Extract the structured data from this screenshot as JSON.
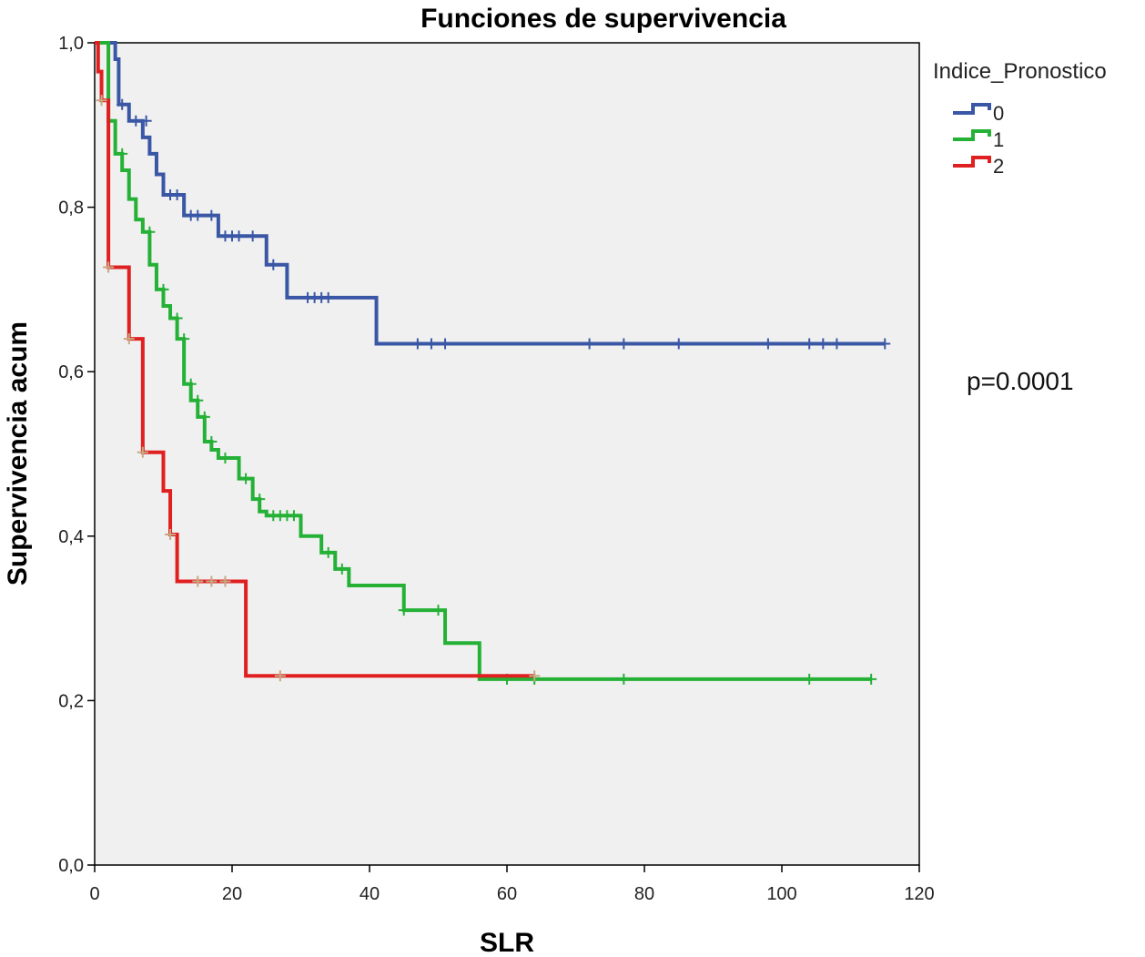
{
  "chart_data": {
    "type": "line",
    "title": "Funciones de supervivencia",
    "xlabel": "SLR",
    "ylabel": "Supervivencia acum",
    "xlim": [
      0,
      120
    ],
    "ylim": [
      0,
      1
    ],
    "x_ticks": [
      {
        "value": 0,
        "label": "0"
      },
      {
        "value": 20,
        "label": "20"
      },
      {
        "value": 40,
        "label": "40"
      },
      {
        "value": 60,
        "label": "60"
      },
      {
        "value": 80,
        "label": "80"
      },
      {
        "value": 100,
        "label": "100"
      },
      {
        "value": 120,
        "label": "120"
      }
    ],
    "y_ticks": [
      {
        "value": 0,
        "label": "0,0"
      },
      {
        "value": 0.2,
        "label": "0,2"
      },
      {
        "value": 0.4,
        "label": "0,4"
      },
      {
        "value": 0.6,
        "label": "0,6"
      },
      {
        "value": 0.8,
        "label": "0,8"
      },
      {
        "value": 1.0,
        "label": "1,0"
      }
    ],
    "grid": false,
    "plot_background": "#f0f0f0",
    "legend": {
      "title": "Indice_Pronostico",
      "position": "top-right outside plot"
    },
    "annotation": "p=0.0001",
    "step_interpolation": "post",
    "series": [
      {
        "name": "0",
        "color": "#3a57a6",
        "marker_color": "#3a57a6",
        "steps": [
          [
            0,
            1.0
          ],
          [
            3,
            0.98
          ],
          [
            3.5,
            0.925
          ],
          [
            5,
            0.905
          ],
          [
            7,
            0.885
          ],
          [
            8,
            0.865
          ],
          [
            9,
            0.84
          ],
          [
            10,
            0.815
          ],
          [
            13,
            0.79
          ],
          [
            18,
            0.765
          ],
          [
            25,
            0.73
          ],
          [
            28,
            0.69
          ],
          [
            41,
            0.634
          ],
          [
            115,
            0.634
          ]
        ],
        "censored": [
          [
            4,
            0.925
          ],
          [
            6,
            0.905
          ],
          [
            7.5,
            0.905
          ],
          [
            11,
            0.815
          ],
          [
            12,
            0.815
          ],
          [
            14,
            0.79
          ],
          [
            15,
            0.79
          ],
          [
            17,
            0.79
          ],
          [
            19,
            0.765
          ],
          [
            20,
            0.765
          ],
          [
            21,
            0.765
          ],
          [
            23,
            0.765
          ],
          [
            26,
            0.73
          ],
          [
            31,
            0.69
          ],
          [
            32,
            0.69
          ],
          [
            33,
            0.69
          ],
          [
            34,
            0.69
          ],
          [
            47,
            0.634
          ],
          [
            49,
            0.634
          ],
          [
            51,
            0.634
          ],
          [
            72,
            0.634
          ],
          [
            77,
            0.634
          ],
          [
            85,
            0.634
          ],
          [
            98,
            0.634
          ],
          [
            104,
            0.634
          ],
          [
            106,
            0.634
          ],
          [
            108,
            0.634
          ],
          [
            115,
            0.634
          ]
        ]
      },
      {
        "name": "1",
        "color": "#24b136",
        "marker_color": "#24b136",
        "steps": [
          [
            0,
            1.0
          ],
          [
            2,
            0.905
          ],
          [
            3,
            0.865
          ],
          [
            4,
            0.845
          ],
          [
            5,
            0.81
          ],
          [
            6,
            0.785
          ],
          [
            7,
            0.77
          ],
          [
            8,
            0.73
          ],
          [
            9,
            0.7
          ],
          [
            10,
            0.68
          ],
          [
            11,
            0.665
          ],
          [
            12,
            0.64
          ],
          [
            13,
            0.585
          ],
          [
            14,
            0.565
          ],
          [
            15,
            0.545
          ],
          [
            16,
            0.515
          ],
          [
            17,
            0.505
          ],
          [
            18,
            0.495
          ],
          [
            21,
            0.47
          ],
          [
            23,
            0.445
          ],
          [
            24,
            0.43
          ],
          [
            25,
            0.425
          ],
          [
            30,
            0.4
          ],
          [
            33,
            0.38
          ],
          [
            35,
            0.36
          ],
          [
            37,
            0.34
          ],
          [
            45,
            0.31
          ],
          [
            51,
            0.27
          ],
          [
            56,
            0.226
          ],
          [
            113,
            0.226
          ]
        ],
        "censored": [
          [
            4,
            0.865
          ],
          [
            8,
            0.77
          ],
          [
            10,
            0.7
          ],
          [
            12,
            0.665
          ],
          [
            13,
            0.64
          ],
          [
            14,
            0.585
          ],
          [
            15,
            0.565
          ],
          [
            16,
            0.545
          ],
          [
            17,
            0.515
          ],
          [
            19,
            0.495
          ],
          [
            22,
            0.47
          ],
          [
            24,
            0.445
          ],
          [
            26,
            0.425
          ],
          [
            27,
            0.425
          ],
          [
            28,
            0.425
          ],
          [
            29,
            0.425
          ],
          [
            34,
            0.38
          ],
          [
            36,
            0.36
          ],
          [
            45,
            0.31
          ],
          [
            50,
            0.31
          ],
          [
            60,
            0.226
          ],
          [
            64,
            0.226
          ],
          [
            77,
            0.226
          ],
          [
            104,
            0.226
          ],
          [
            113,
            0.226
          ]
        ]
      },
      {
        "name": "2",
        "color": "#e02020",
        "marker_color": "#c8a882",
        "steps": [
          [
            0,
            1.0
          ],
          [
            0.5,
            0.965
          ],
          [
            1,
            0.93
          ],
          [
            2,
            0.727
          ],
          [
            5,
            0.64
          ],
          [
            7,
            0.502
          ],
          [
            10,
            0.455
          ],
          [
            11,
            0.402
          ],
          [
            12,
            0.345
          ],
          [
            22,
            0.23
          ],
          [
            64,
            0.23
          ]
        ],
        "censored": [
          [
            1,
            0.93
          ],
          [
            2,
            0.727
          ],
          [
            5,
            0.64
          ],
          [
            7,
            0.502
          ],
          [
            11,
            0.402
          ],
          [
            15,
            0.345
          ],
          [
            17,
            0.345
          ],
          [
            19,
            0.345
          ],
          [
            27,
            0.23
          ],
          [
            64,
            0.23
          ]
        ]
      }
    ]
  }
}
